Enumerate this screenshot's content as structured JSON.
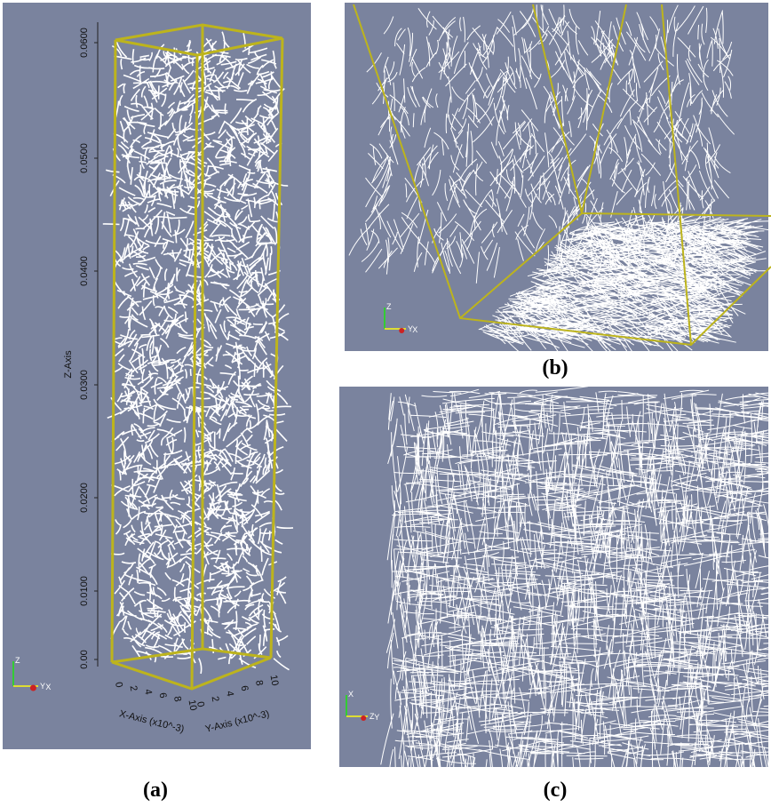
{
  "panels": {
    "a": {
      "caption": "(a)",
      "z_axis_label": "Z-Axis",
      "z_ticks": [
        "0.0600",
        "0.0500",
        "0.0400",
        "0.0300",
        "0.0200",
        "0.0100",
        "0.00"
      ],
      "x_axis_label": "X-Axis (x10^-3)",
      "x_ticks": [
        "0",
        "2",
        "4",
        "6",
        "8",
        "10"
      ],
      "y_axis_label": "Y-Axis (x10^-3)",
      "y_ticks": [
        "0",
        "2",
        "4",
        "6",
        "8",
        "10"
      ],
      "triad": [
        "Z",
        "Y",
        "X"
      ]
    },
    "b": {
      "caption": "(b)",
      "triad": [
        "Z",
        "Y",
        "X"
      ]
    },
    "c": {
      "caption": "(c)",
      "triad": [
        "X",
        "Z",
        "Y"
      ]
    }
  }
}
